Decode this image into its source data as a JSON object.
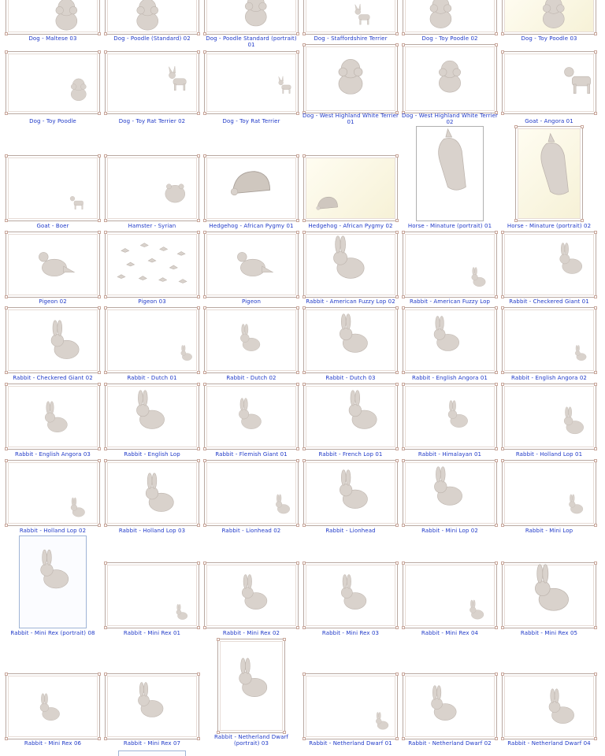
{
  "gallery": {
    "items": [
      {
        "caption": "Dog - Maltese 03",
        "animal": "dog-maltese"
      },
      {
        "caption": "Dog - Poodle (Standard) 02",
        "animal": "dog-poodle"
      },
      {
        "caption": "Dog - Poodle Standard (portrait) 01",
        "animal": "dog-poodle"
      },
      {
        "caption": "Dog - Staffordshire Terrier",
        "animal": "dog-terrier"
      },
      {
        "caption": "Dog - Toy Poodle 02",
        "animal": "dog-poodle"
      },
      {
        "caption": "Dog - Toy Poodle 03",
        "animal": "dog-poodle"
      },
      {
        "caption": "Dog - Toy Poodle",
        "animal": "dog-poodle"
      },
      {
        "caption": "Dog - Toy Rat Terrier 02",
        "animal": "dog-terrier"
      },
      {
        "caption": "Dog - Toy Rat Terrier",
        "animal": "dog-terrier"
      },
      {
        "caption": "Dog - West Highland White Terrier 01",
        "animal": "dog-westie"
      },
      {
        "caption": "Dog - West Highland White Terrier 02",
        "animal": "dog-westie"
      },
      {
        "caption": "Goat - Angora 01",
        "animal": "goat"
      },
      {
        "caption": "Goat - Boer",
        "animal": "goat"
      },
      {
        "caption": "Hamster - Syrian",
        "animal": "hamster"
      },
      {
        "caption": "Hedgehog - African Pygmy 01",
        "animal": "hedgehog"
      },
      {
        "caption": "Hedgehog - African Pygmy 02",
        "animal": "hedgehog"
      },
      {
        "caption": "Horse - Minature (portrait) 01",
        "animal": "horse"
      },
      {
        "caption": "Horse - Minature (portrait) 02",
        "animal": "horse"
      },
      {
        "caption": "Pigeon 02",
        "animal": "pigeon"
      },
      {
        "caption": "Pigeon 03",
        "animal": "pigeon-flock"
      },
      {
        "caption": "Pigeon",
        "animal": "pigeon"
      },
      {
        "caption": "Rabbit - American Fuzzy Lop 02",
        "animal": "rabbit"
      },
      {
        "caption": "Rabbit - American Fuzzy Lop",
        "animal": "rabbit"
      },
      {
        "caption": "Rabbit - Checkered Giant 01",
        "animal": "rabbit"
      },
      {
        "caption": "Rabbit - Checkered Giant 02",
        "animal": "rabbit"
      },
      {
        "caption": "Rabbit - Dutch 01",
        "animal": "rabbit"
      },
      {
        "caption": "Rabbit - Dutch 02",
        "animal": "rabbit"
      },
      {
        "caption": "Rabbit - Dutch 03",
        "animal": "rabbit"
      },
      {
        "caption": "Rabbit - English Angora 01",
        "animal": "rabbit"
      },
      {
        "caption": "Rabbit - English Angora 02",
        "animal": "rabbit"
      },
      {
        "caption": "Rabbit - English Angora 03",
        "animal": "rabbit"
      },
      {
        "caption": "Rabbit - English Lop",
        "animal": "rabbit"
      },
      {
        "caption": "Rabbit - Flemish Giant 01",
        "animal": "rabbit"
      },
      {
        "caption": "Rabbit - French Lop 01",
        "animal": "rabbit"
      },
      {
        "caption": "Rabbit - Himalayan 01",
        "animal": "rabbit"
      },
      {
        "caption": "Rabbit - Holland Lop 01",
        "animal": "rabbit"
      },
      {
        "caption": "Rabbit - Holland Lop 02",
        "animal": "rabbit"
      },
      {
        "caption": "Rabbit - Holland Lop 03",
        "animal": "rabbit"
      },
      {
        "caption": "Rabbit - Lionhead 02",
        "animal": "rabbit"
      },
      {
        "caption": "Rabbit - Lionhead",
        "animal": "rabbit"
      },
      {
        "caption": "Rabbit - Mini Lop 02",
        "animal": "rabbit"
      },
      {
        "caption": "Rabbit - Mini Lop",
        "animal": "rabbit"
      },
      {
        "caption": "Rabbit - Mini Rex (portrait) 08",
        "animal": "rabbit"
      },
      {
        "caption": "Rabbit - Mini Rex 01",
        "animal": "rabbit"
      },
      {
        "caption": "Rabbit - Mini Rex 02",
        "animal": "rabbit"
      },
      {
        "caption": "Rabbit - Mini Rex 03",
        "animal": "rabbit"
      },
      {
        "caption": "Rabbit - Mini Rex 04",
        "animal": "rabbit"
      },
      {
        "caption": "Rabbit - Mini Rex 05",
        "animal": "rabbit"
      },
      {
        "caption": "Rabbit - Mini Rex 06",
        "animal": "rabbit"
      },
      {
        "caption": "Rabbit - Mini Rex 07",
        "animal": "rabbit"
      },
      {
        "caption": "Rabbit - Netherland Dwarf (portrait) 03",
        "animal": "rabbit"
      },
      {
        "caption": "Rabbit - Netherland Dwarf 01",
        "animal": "rabbit"
      },
      {
        "caption": "Rabbit - Netherland Dwarf 02",
        "animal": "rabbit"
      },
      {
        "caption": "Rabbit - Netherland Dwarf 04",
        "animal": "rabbit"
      }
    ]
  },
  "colors": {
    "caption": "#1f39c8",
    "frame": "#b9a9a2",
    "animal": "#d9d2cc"
  }
}
